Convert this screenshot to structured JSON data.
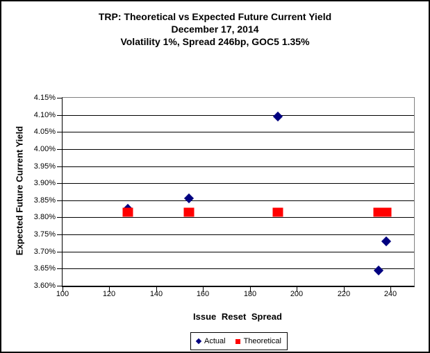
{
  "chart_data": {
    "type": "scatter",
    "title": "TRP: Theoretical vs Expected Future Current Yield",
    "subtitle_date": "December 17, 2014",
    "subtitle_params": "Volatility 1%, Spread 246bp, GOC5 1.35%",
    "xlabel": "Issue Reset Spread",
    "ylabel": "Expected Future Current Yield",
    "xlim": [
      100,
      250
    ],
    "ylim": [
      3.6,
      4.15
    ],
    "grid": "horizontal-only",
    "legend_position": "bottom",
    "x_ticks": [
      {
        "v": 100,
        "label": "100"
      },
      {
        "v": 120,
        "label": "120"
      },
      {
        "v": 140,
        "label": "140"
      },
      {
        "v": 160,
        "label": "160"
      },
      {
        "v": 180,
        "label": "180"
      },
      {
        "v": 200,
        "label": "200"
      },
      {
        "v": 220,
        "label": "220"
      },
      {
        "v": 240,
        "label": "240"
      }
    ],
    "y_ticks": [
      {
        "v": 4.15,
        "label": "4.15%"
      },
      {
        "v": 4.1,
        "label": "4.10%"
      },
      {
        "v": 4.05,
        "label": "4.05%"
      },
      {
        "v": 4.0,
        "label": "4.00%"
      },
      {
        "v": 3.95,
        "label": "3.95%"
      },
      {
        "v": 3.9,
        "label": "3.90%"
      },
      {
        "v": 3.85,
        "label": "3.85%"
      },
      {
        "v": 3.8,
        "label": "3.80%"
      },
      {
        "v": 3.75,
        "label": "3.75%"
      },
      {
        "v": 3.7,
        "label": "3.70%"
      },
      {
        "v": 3.65,
        "label": "3.65%"
      },
      {
        "v": 3.6,
        "label": "3.60%"
      }
    ],
    "series": [
      {
        "name": "Actual",
        "marker": "diamond",
        "color": "#000080",
        "points": [
          {
            "x": 128,
            "y": 3.825
          },
          {
            "x": 154,
            "y": 3.855
          },
          {
            "x": 192,
            "y": 4.095
          },
          {
            "x": 235,
            "y": 3.645
          },
          {
            "x": 238,
            "y": 3.73
          }
        ]
      },
      {
        "name": "Theoretical",
        "marker": "square",
        "color": "#FF0000",
        "points": [
          {
            "x": 128,
            "y": 3.815
          },
          {
            "x": 154,
            "y": 3.815
          },
          {
            "x": 192,
            "y": 3.815
          },
          {
            "x": 235,
            "y": 3.815
          },
          {
            "x": 238,
            "y": 3.815
          }
        ]
      }
    ],
    "colors": {
      "gridline": "#000000",
      "plot_border": "#808080",
      "axis": "#000000",
      "text": "#000000",
      "background": "#FFFFFF"
    }
  }
}
